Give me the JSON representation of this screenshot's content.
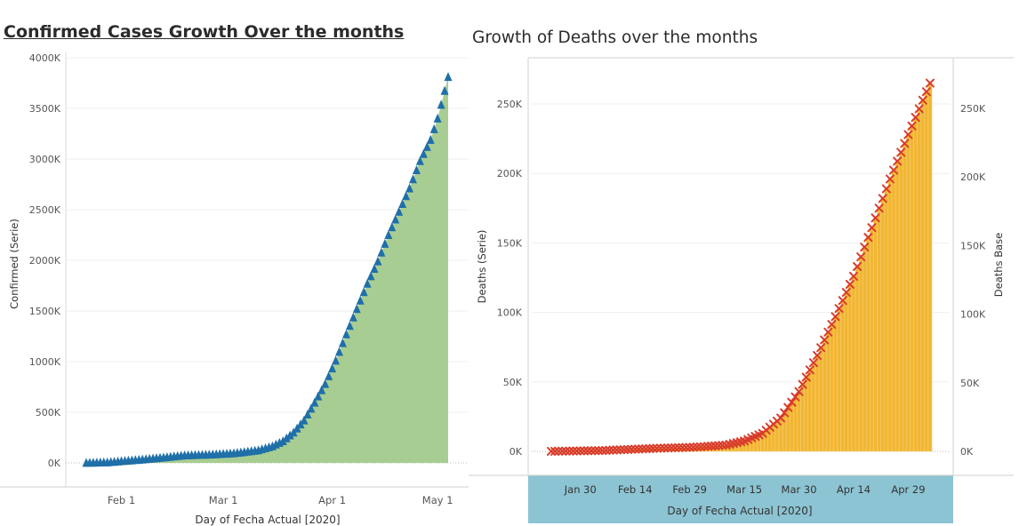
{
  "chart_data": [
    {
      "type": "area",
      "title": "Confirmed Cases Growth Over the months",
      "xlabel": "Day of Fecha Actual [2020]",
      "ylabel": "Confirmed (Serie)",
      "xticks": [
        "Feb 1",
        "Mar 1",
        "Apr 1",
        "May 1"
      ],
      "yticks": [
        "0K",
        "500K",
        "1000K",
        "1500K",
        "2000K",
        "2500K",
        "3000K",
        "3500K",
        "4000K"
      ],
      "ylim": [
        0,
        4000
      ],
      "xlim": [
        "2020-01-22",
        "2020-05-04"
      ],
      "grid": true,
      "marker": "triangle",
      "colors": {
        "fill": "#a8cd92",
        "marker": "#1f6fa8"
      },
      "series": [
        {
          "x": [
            "2020-01-22",
            "2020-01-28",
            "2020-02-05",
            "2020-02-12",
            "2020-02-19",
            "2020-02-26",
            "2020-03-04",
            "2020-03-11",
            "2020-03-15",
            "2020-03-18",
            "2020-03-21",
            "2020-03-24",
            "2020-03-27",
            "2020-03-30",
            "2020-04-02",
            "2020-04-05",
            "2020-04-08",
            "2020-04-11",
            "2020-04-14",
            "2020-04-17",
            "2020-04-20",
            "2020-04-23",
            "2020-04-26",
            "2020-04-29",
            "2020-05-01",
            "2020-05-04"
          ],
          "values": [
            1,
            6,
            28,
            50,
            75,
            82,
            95,
            125,
            165,
            215,
            300,
            420,
            595,
            780,
            1010,
            1270,
            1520,
            1770,
            1990,
            2250,
            2480,
            2710,
            2980,
            3190,
            3400,
            3810
          ]
        }
      ]
    },
    {
      "type": "bar",
      "title": "Growth of Deaths over the months",
      "xlabel": "Day of Fecha Actual [2020]",
      "ylabel": "Deaths (Serie)",
      "ylabel_right": "Deaths Base",
      "xticks": [
        "Jan 30",
        "Feb 14",
        "Feb 29",
        "Mar 15",
        "Mar 30",
        "Apr 14",
        "Apr 29"
      ],
      "yticks": [
        "0K",
        "50K",
        "100K",
        "150K",
        "200K",
        "250K"
      ],
      "yticks_right": [
        "0K",
        "50K",
        "100K",
        "150K",
        "200K",
        "250K"
      ],
      "ylim": [
        0,
        260
      ],
      "xlim": [
        "2020-01-22",
        "2020-05-05"
      ],
      "grid": true,
      "marker": "x",
      "colors": {
        "bar": "#f2b632",
        "bar_edge": "#f6d27e",
        "marker": "#d83c2b",
        "axis_band": "#8cc4d3"
      },
      "series": [
        {
          "name": "Deaths (Serie)",
          "x": [
            "2020-01-22",
            "2020-02-05",
            "2020-02-20",
            "2020-03-01",
            "2020-03-10",
            "2020-03-15",
            "2020-03-20",
            "2020-03-25",
            "2020-03-30",
            "2020-04-04",
            "2020-04-09",
            "2020-04-14",
            "2020-04-19",
            "2020-04-24",
            "2020-04-29",
            "2020-05-05"
          ],
          "values": [
            0.02,
            0.6,
            2.2,
            3.0,
            4.5,
            7.5,
            13,
            24,
            43,
            69,
            97,
            126,
            161,
            196,
            228,
            265
          ]
        }
      ]
    }
  ]
}
